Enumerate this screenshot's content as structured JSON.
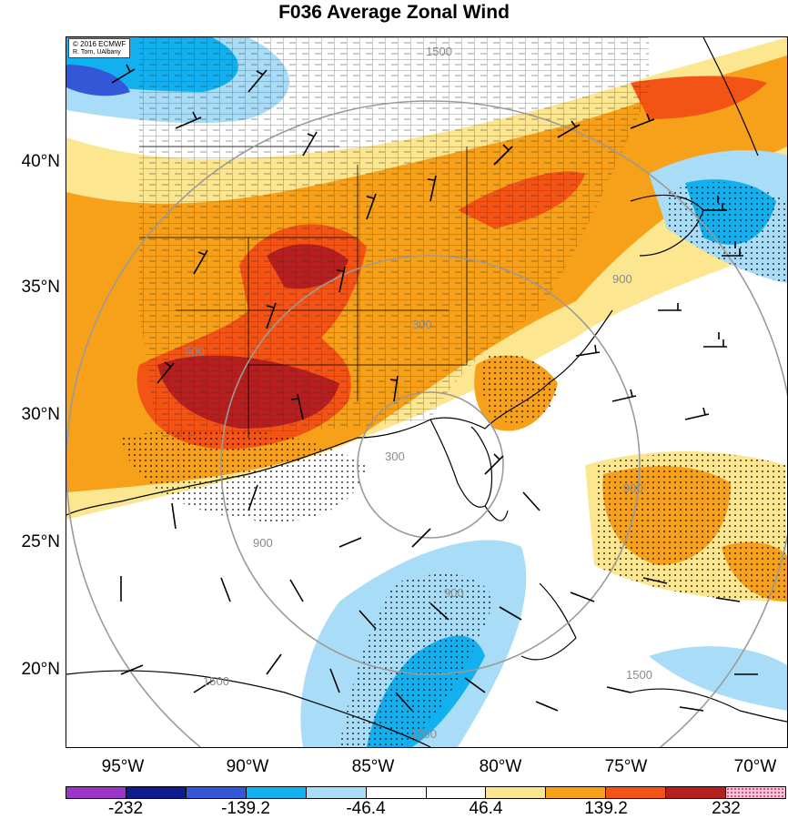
{
  "title": "F036 Average Zonal Wind",
  "credit": {
    "line1": "© 2016 ECMWF",
    "line2": "R. Torn, UAlbany"
  },
  "lat_labels": [
    "40°N",
    "35°N",
    "30°N",
    "25°N",
    "20°N"
  ],
  "lon_labels": [
    "95°W",
    "90°W",
    "85°W",
    "80°W",
    "75°W",
    "70°W"
  ],
  "contour_labels": [
    "1500",
    "900",
    "300",
    "300",
    "900",
    "900",
    "900",
    "900",
    "1500",
    "1500",
    "1500"
  ],
  "colorbar": {
    "colors": [
      "#9a35c8",
      "#101a8c",
      "#3357d6",
      "#13b0f0",
      "#a9dcf6",
      "#ffffff",
      "#ffffff",
      "#fce690",
      "#f7a11a",
      "#f35416",
      "#b51f1f",
      "#f7c3da"
    ],
    "labels": [
      "-232",
      "-139.2",
      "-46.4",
      "46.4",
      "139.2",
      "232"
    ]
  },
  "colors": {
    "strong_positive": "#b51f1f",
    "positive_high": "#f35416",
    "positive_mid": "#f7a11a",
    "positive_low": "#fce690",
    "negative_low": "#a9dcf6",
    "negative_mid": "#13b0f0",
    "negative_high": "#3357d6"
  }
}
